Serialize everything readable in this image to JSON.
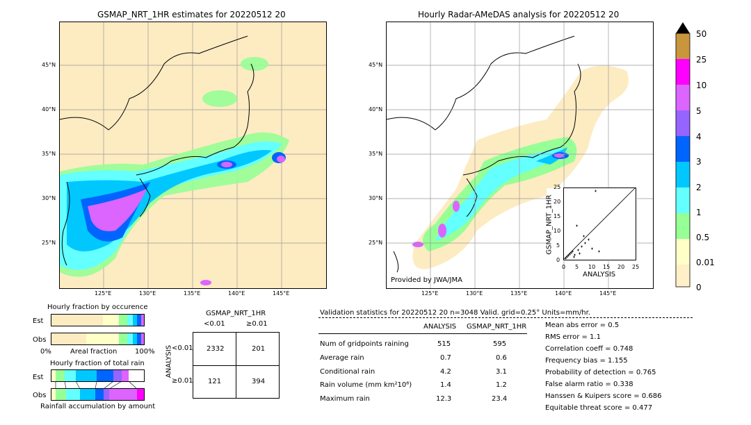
{
  "left_map": {
    "title": "GSMAP_NRT_1HR estimates for 20220512 20",
    "lat_ticks": [
      "45°N",
      "40°N",
      "35°N",
      "30°N",
      "25°N"
    ],
    "lon_ticks": [
      "125°E",
      "130°E",
      "135°E",
      "140°E",
      "145°E"
    ]
  },
  "right_map": {
    "title": "Hourly Radar-AMeDAS analysis for 20220512 20",
    "lat_ticks": [
      "45°N",
      "40°N",
      "35°N",
      "30°N",
      "25°N"
    ],
    "lon_ticks": [
      "125°E",
      "130°E",
      "135°E",
      "140°E",
      "145°E"
    ],
    "credit": "Provided by JWA/JMA"
  },
  "colorbar": {
    "labels": [
      "50",
      "25",
      "10",
      "5",
      "4",
      "3",
      "2",
      "1",
      "0.5",
      "0.01",
      "0"
    ],
    "colors": [
      "#c8963c",
      "#ff00ff",
      "#dc64ff",
      "#9664ff",
      "#0064ff",
      "#00c8ff",
      "#64ffff",
      "#96ff96",
      "#ffffc8",
      "#fff0c8"
    ]
  },
  "scatter": {
    "xlabel": "ANALYSIS",
    "ylabel": "GSMAP_NRT_1HR",
    "ticks": [
      "0",
      "5",
      "10",
      "15",
      "20",
      "25"
    ]
  },
  "occurrence": {
    "title": "Hourly fraction by occurence",
    "rows": [
      "Est",
      "Obs"
    ],
    "axis_left": "0%",
    "axis_mid": "Areal fraction",
    "axis_right": "100%"
  },
  "total_rain": {
    "title": "Hourly fraction of total rain",
    "rows": [
      "Est",
      "Obs"
    ],
    "footer": "Rainfall accumulation by amount"
  },
  "contingency": {
    "col_header": "GSMAP_NRT_1HR",
    "col_lt": "<0.01",
    "col_ge": "≥0.01",
    "row_header": "ANALYSIS",
    "row_lt": "<0.01",
    "row_ge": "≥0.01",
    "cells": [
      "2332",
      "201",
      "121",
      "394"
    ]
  },
  "validation": {
    "header": "Validation statistics for 20220512 20  n=3048 Valid. grid=0.25° Units=mm/hr.",
    "col_analysis": "ANALYSIS",
    "col_gsmap": "GSMAP_NRT_1HR",
    "rows": [
      {
        "label": "Num of gridpoints raining",
        "a": "515",
        "g": "595"
      },
      {
        "label": "Average rain",
        "a": "0.7",
        "g": "0.6"
      },
      {
        "label": "Conditional rain",
        "a": "4.2",
        "g": "3.1"
      },
      {
        "label": "Rain volume (mm km²10⁶)",
        "a": "1.4",
        "g": "1.2"
      },
      {
        "label": "Maximum rain",
        "a": "12.3",
        "g": "23.4"
      }
    ],
    "scores": [
      "Mean abs error =    0.5",
      "RMS error =    1.1",
      "Correlation coeff =  0.748",
      "Frequency bias =  1.155",
      "Probability of detection =  0.765",
      "False alarm ratio =  0.338",
      "Hanssen & Kuipers score =  0.686",
      "Equitable threat score =  0.477"
    ]
  }
}
